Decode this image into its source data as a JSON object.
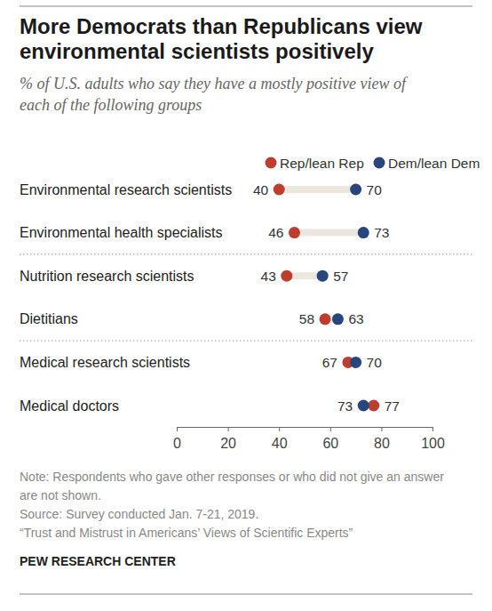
{
  "chart_data": {
    "type": "dot",
    "title": "More Democrats than Republicans view environmental scientists positively",
    "subtitle": "% of U.S. adults who say they have a mostly positive view of each of the following groups",
    "categories": [
      "Environmental research scientists",
      "Environmental health specialists",
      "Nutrition research scientists",
      "Dietitians",
      "Medical research scientists",
      "Medical doctors"
    ],
    "series": [
      {
        "name": "Rep/lean Rep",
        "color": "#bf3d2f",
        "values": [
          40,
          46,
          43,
          58,
          67,
          77
        ]
      },
      {
        "name": "Dem/lean Dem",
        "color": "#27467d",
        "values": [
          70,
          73,
          57,
          63,
          70,
          73
        ]
      }
    ],
    "xlim": [
      0,
      100
    ],
    "xticks": [
      0,
      20,
      40,
      60,
      80,
      100
    ],
    "grid": false,
    "legend": "top",
    "data_labels": true,
    "tick_labels": "x",
    "notes": [
      "Note: Respondents who gave other responses or who did not give an answer are not shown.",
      "Source: Survey conducted Jan. 7-21, 2019.",
      "“Trust and Mistrust in Americans’ Views of Scientific Experts”"
    ],
    "credit": "PEW RESEARCH CENTER"
  }
}
